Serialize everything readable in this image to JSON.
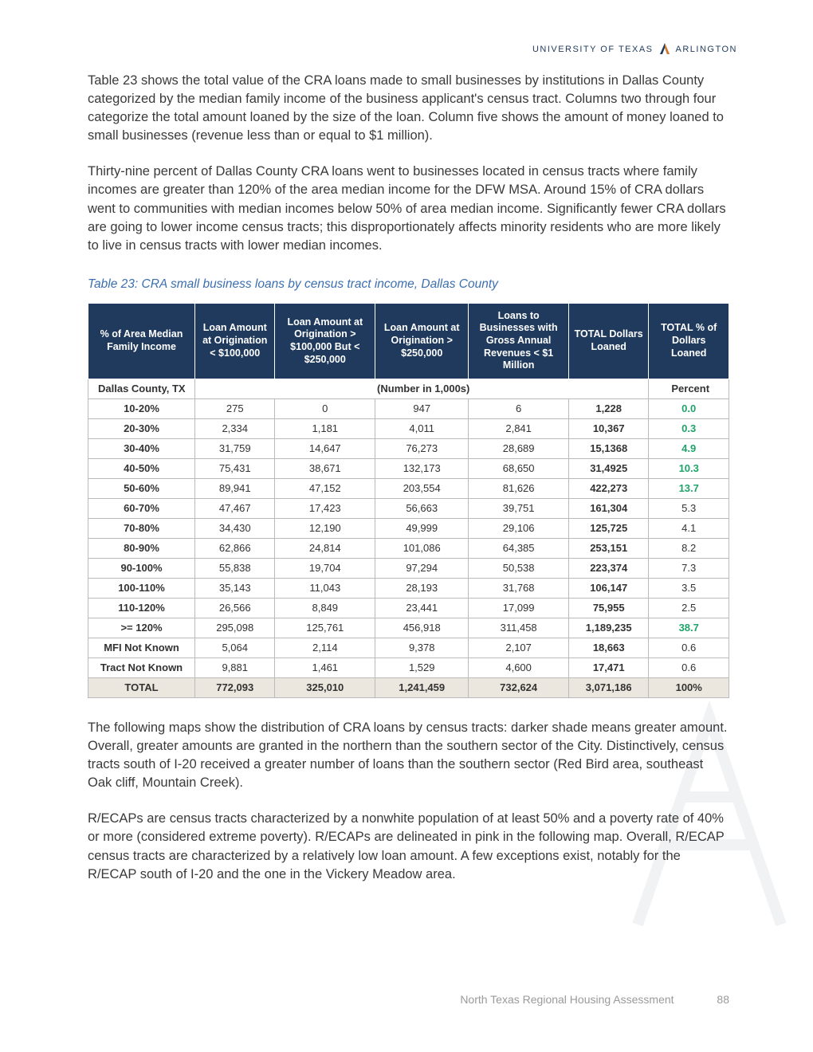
{
  "header": {
    "org_left": "UNIVERSITY OF TEXAS",
    "org_right": "ARLINGTON"
  },
  "paragraphs": {
    "p1": "Table 23 shows the total value of the CRA loans made to small businesses by institutions in Dallas County categorized by the median family income of the business applicant's census tract. Columns two through four categorize the total amount loaned by the size of the loan. Column five shows the amount of money loaned to small businesses (revenue less than or equal to $1 million).",
    "p2": "Thirty-nine percent of Dallas County CRA loans went to businesses located in census tracts where family incomes are greater than 120% of the area median income for the DFW MSA. Around 15% of CRA dollars went to communities with median incomes below 50% of area median income. Significantly fewer CRA dollars are going to lower income census tracts; this disproportionately affects minority residents who are more likely to live in census tracts with lower median incomes.",
    "p3": "The following maps show the distribution of CRA loans by census tracts: darker shade means greater amount. Overall, greater amounts are granted in the northern than the southern sector of the City. Distinctively, census tracts south of I-20 received a greater number of loans than the southern sector (Red Bird area, southeast Oak cliff, Mountain Creek).",
    "p4": "R/ECAPs are census tracts characterized by a nonwhite population of at least 50% and a poverty rate of 40% or more (considered extreme poverty). R/ECAPs are delineated in pink in the following map. Overall, R/ECAP census tracts are characterized by a relatively low loan amount. A few exceptions exist, notably for the R/ECAP south of I-20 and the one in the Vickery Meadow area."
  },
  "table": {
    "caption": "Table 23: CRA small business loans by census tract income, Dallas County",
    "columns": [
      "% of Area Median Family Income",
      "Loan Amount at Origination < $100,000",
      "Loan Amount at Origination > $100,000 But < $250,000",
      "Loan Amount at Origination > $250,000",
      "Loans to Businesses with Gross Annual Revenues < $1 Million",
      "TOTAL Dollars Loaned",
      "TOTAL % of Dollars Loaned"
    ],
    "subhead_left": "Dallas  County, TX",
    "subhead_mid": "(Number in 1,000s)",
    "subhead_right": "Percent",
    "rows": [
      {
        "label": "10-20%",
        "c1": "275",
        "c2": "0",
        "c3": "947",
        "c4": "6",
        "total": "1,228",
        "pct": "0.0",
        "green": true
      },
      {
        "label": "20-30%",
        "c1": "2,334",
        "c2": "1,181",
        "c3": "4,011",
        "c4": "2,841",
        "total": "10,367",
        "pct": "0.3",
        "green": true
      },
      {
        "label": "30-40%",
        "c1": "31,759",
        "c2": "14,647",
        "c3": "76,273",
        "c4": "28,689",
        "total": "15,1368",
        "pct": "4.9",
        "green": true
      },
      {
        "label": "40-50%",
        "c1": "75,431",
        "c2": "38,671",
        "c3": "132,173",
        "c4": "68,650",
        "total": "31,4925",
        "pct": "10.3",
        "green": true
      },
      {
        "label": "50-60%",
        "c1": "89,941",
        "c2": "47,152",
        "c3": "203,554",
        "c4": "81,626",
        "total": "422,273",
        "pct": "13.7",
        "green": true
      },
      {
        "label": "60-70%",
        "c1": "47,467",
        "c2": "17,423",
        "c3": "56,663",
        "c4": "39,751",
        "total": "161,304",
        "pct": "5.3",
        "green": false
      },
      {
        "label": "70-80%",
        "c1": "34,430",
        "c2": "12,190",
        "c3": "49,999",
        "c4": "29,106",
        "total": "125,725",
        "pct": "4.1",
        "green": false
      },
      {
        "label": "80-90%",
        "c1": "62,866",
        "c2": "24,814",
        "c3": "101,086",
        "c4": "64,385",
        "total": "253,151",
        "pct": "8.2",
        "green": false
      },
      {
        "label": "90-100%",
        "c1": "55,838",
        "c2": "19,704",
        "c3": "97,294",
        "c4": "50,538",
        "total": "223,374",
        "pct": "7.3",
        "green": false
      },
      {
        "label": "100-110%",
        "c1": "35,143",
        "c2": "11,043",
        "c3": "28,193",
        "c4": "31,768",
        "total": "106,147",
        "pct": "3.5",
        "green": false
      },
      {
        "label": "110-120%",
        "c1": "26,566",
        "c2": "8,849",
        "c3": "23,441",
        "c4": "17,099",
        "total": "75,955",
        "pct": "2.5",
        "green": false
      },
      {
        "label": ">= 120%",
        "c1": "295,098",
        "c2": "125,761",
        "c3": "456,918",
        "c4": "311,458",
        "total": "1,189,235",
        "pct": "38.7",
        "green": true
      },
      {
        "label": "MFI Not Known",
        "c1": "5,064",
        "c2": "2,114",
        "c3": "9,378",
        "c4": "2,107",
        "total": "18,663",
        "pct": "0.6",
        "green": false
      },
      {
        "label": "Tract Not Known",
        "c1": "9,881",
        "c2": "1,461",
        "c3": "1,529",
        "c4": "4,600",
        "total": "17,471",
        "pct": "0.6",
        "green": false
      }
    ],
    "total_row": {
      "label": "TOTAL",
      "c1": "772,093",
      "c2": "325,010",
      "c3": "1,241,459",
      "c4": "732,624",
      "total": "3,071,186",
      "pct": "100%"
    },
    "colors": {
      "header_bg": "#1f3a5c",
      "header_fg": "#ffffff",
      "border": "#bbbbbb",
      "green": "#1fa36a",
      "total_bg": "#ece7de",
      "caption_color": "#3b6fb0"
    }
  },
  "footer": {
    "title": "North Texas Regional Housing Assessment",
    "page": "88"
  }
}
